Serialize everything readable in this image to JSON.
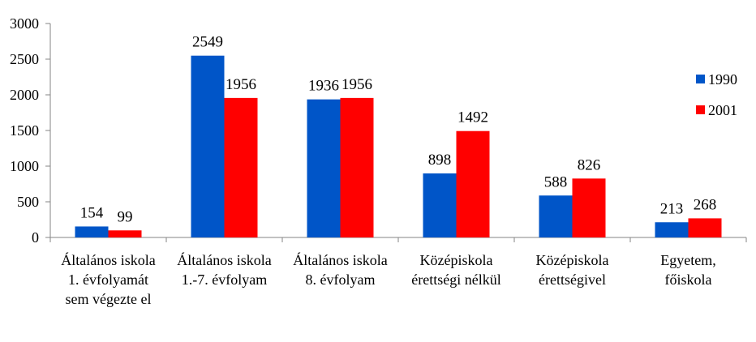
{
  "chart_data": {
    "type": "bar",
    "categories": [
      [
        "Általános iskola",
        "1. évfolyamát",
        "sem végezte el"
      ],
      [
        "Általános iskola",
        "1.-7. évfolyam"
      ],
      [
        "Általános iskola",
        "8. évfolyam"
      ],
      [
        "Középiskola",
        "érettségi nélkül"
      ],
      [
        "Középiskola",
        "érettségivel"
      ],
      [
        "Egyetem,",
        "főiskola"
      ]
    ],
    "series": [
      {
        "name": "1990",
        "color": "#0055c8",
        "values": [
          154,
          2549,
          1936,
          898,
          588,
          213
        ]
      },
      {
        "name": "2001",
        "color": "#ff0000",
        "values": [
          99,
          1956,
          1956,
          1492,
          826,
          268
        ]
      }
    ],
    "ylim": [
      0,
      3000
    ],
    "yticks": [
      "0",
      "500",
      "1000",
      "1500",
      "2000",
      "2500",
      "3000"
    ],
    "grid": false,
    "legend_position": "right"
  }
}
